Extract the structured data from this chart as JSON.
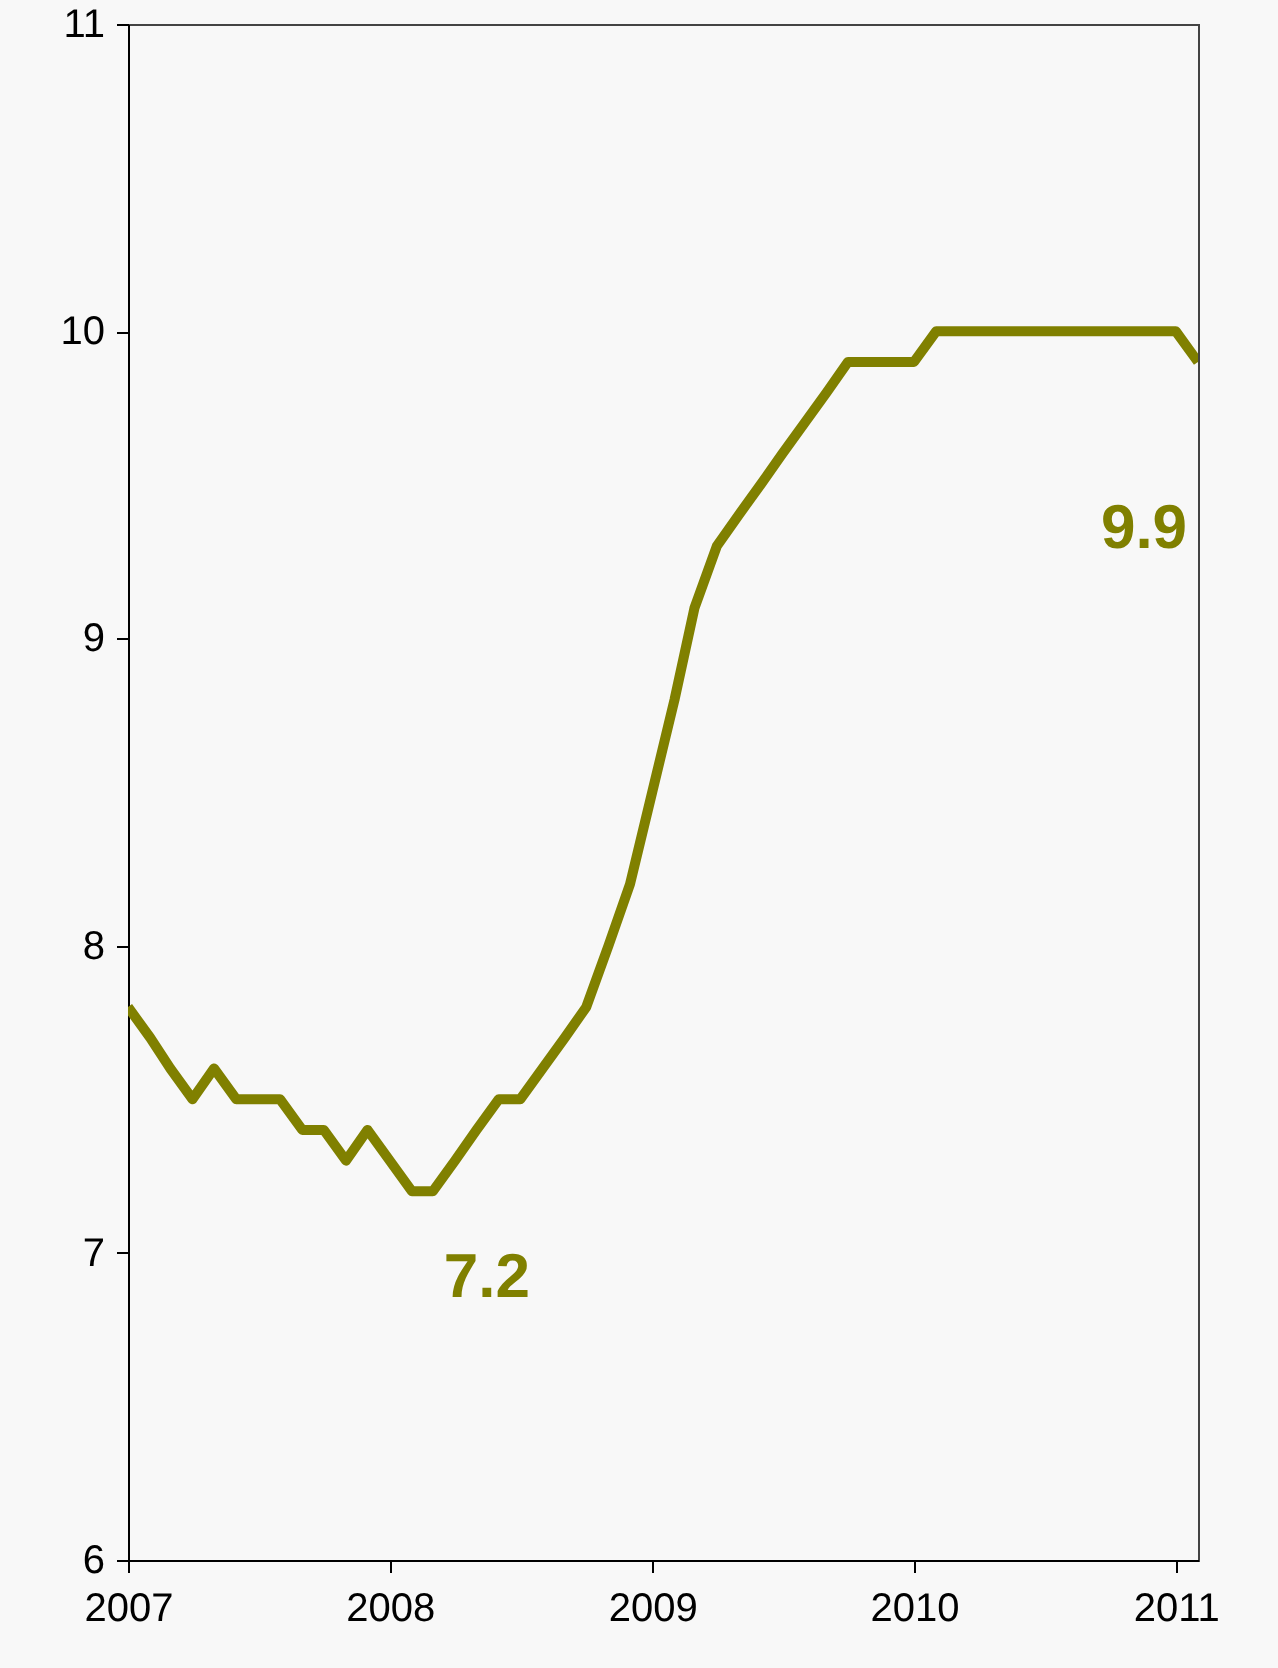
{
  "chart_data": {
    "type": "line",
    "x": [
      "2007-01",
      "2007-02",
      "2007-03",
      "2007-04",
      "2007-05",
      "2007-06",
      "2007-07",
      "2007-08",
      "2007-09",
      "2007-10",
      "2007-11",
      "2007-12",
      "2008-01",
      "2008-02",
      "2008-03",
      "2008-04",
      "2008-05",
      "2008-06",
      "2008-07",
      "2008-08",
      "2008-09",
      "2008-10",
      "2008-11",
      "2008-12",
      "2009-01",
      "2009-02",
      "2009-03",
      "2009-04",
      "2009-05",
      "2009-06",
      "2009-07",
      "2009-08",
      "2009-09",
      "2009-10",
      "2009-11",
      "2009-12",
      "2010-01",
      "2010-02",
      "2010-03",
      "2010-04",
      "2010-05",
      "2010-06",
      "2010-07",
      "2010-08",
      "2010-09",
      "2010-10",
      "2010-11",
      "2010-12",
      "2011-01",
      "2011-02"
    ],
    "series": [
      {
        "color": "#808000",
        "values": [
          7.8,
          7.7,
          7.6,
          7.5,
          7.6,
          7.5,
          7.5,
          7.5,
          7.4,
          7.4,
          7.3,
          7.4,
          7.3,
          7.2,
          7.2,
          7.3,
          7.4,
          7.5,
          7.5,
          7.6,
          7.7,
          7.8,
          8.0,
          8.2,
          8.5,
          8.8,
          9.1,
          9.3,
          9.4,
          9.5,
          9.6,
          9.7,
          9.8,
          9.9,
          9.9,
          9.9,
          9.9,
          10.0,
          10.0,
          10.0,
          10.0,
          10.0,
          10.0,
          10.0,
          10.0,
          10.0,
          10.0,
          10.0,
          10.0,
          9.9
        ]
      }
    ],
    "xlim": [
      "2007-01",
      "2011-02"
    ],
    "xticks": [
      "2007",
      "2008",
      "2009",
      "2010",
      "2011"
    ],
    "ylim": [
      6,
      11
    ],
    "yticks": [
      6,
      7,
      8,
      9,
      10,
      11
    ],
    "annotations": [
      {
        "text": "7.2",
        "x": "2008-03",
        "y": 7.2
      },
      {
        "text": "9.9",
        "x": "2011-02",
        "y": 9.9
      }
    ]
  }
}
